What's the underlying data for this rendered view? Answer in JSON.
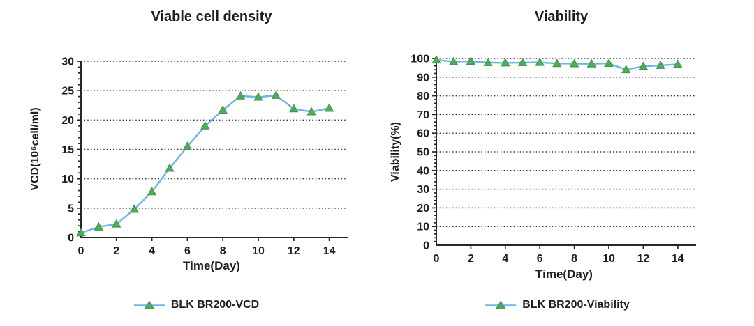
{
  "figure": {
    "background": "#ffffff"
  },
  "colors": {
    "line": "#6CB5E8",
    "marker": "#4FAC57",
    "marker_edge": "#3D9448",
    "axis": "#262626",
    "grid": "#3a3a3a",
    "text": "#1f1f1f"
  },
  "chart_data": [
    {
      "type": "line",
      "title": "Viable cell density",
      "xlabel": "Time(Day)",
      "ylabel": "VCD(10⁶cell/ml)",
      "x": [
        0,
        1,
        2,
        3,
        4,
        5,
        6,
        7,
        8,
        9,
        10,
        11,
        12,
        13,
        14
      ],
      "series": [
        {
          "name": "BLK BR200-VCD",
          "values": [
            0.8,
            1.8,
            2.3,
            4.8,
            7.8,
            11.8,
            15.5,
            19.0,
            21.7,
            24.1,
            23.9,
            24.2,
            21.9,
            21.4,
            22.0
          ],
          "line_color": "#6CB5E8",
          "marker": "triangle-up",
          "marker_color": "#4FAC57"
        }
      ],
      "xlim": [
        0,
        15
      ],
      "ylim": [
        0,
        30
      ],
      "x_ticks": [
        0,
        2,
        4,
        6,
        8,
        10,
        12,
        14
      ],
      "y_ticks": [
        0,
        5,
        10,
        15,
        20,
        25,
        30
      ],
      "y_minor_step": 1,
      "grid": "horizontal-dotted",
      "legend_position": "bottom"
    },
    {
      "type": "line",
      "title": "Viability",
      "xlabel": "Time(Day)",
      "ylabel": "Viability(%)",
      "x": [
        0,
        1,
        2,
        3,
        4,
        5,
        6,
        7,
        8,
        9,
        10,
        11,
        12,
        13,
        14
      ],
      "series": [
        {
          "name": "BLK BR200-Viability",
          "values": [
            99.2,
            98.3,
            98.5,
            97.8,
            97.6,
            97.8,
            97.9,
            97.3,
            97.2,
            97.1,
            97.4,
            94.0,
            95.8,
            96.3,
            96.9
          ],
          "line_color": "#6CB5E8",
          "marker": "triangle-up",
          "marker_color": "#4FAC57"
        }
      ],
      "xlim": [
        0,
        15
      ],
      "ylim": [
        0,
        100
      ],
      "x_ticks": [
        0,
        2,
        4,
        6,
        8,
        10,
        12,
        14
      ],
      "y_ticks": [
        0,
        10,
        20,
        30,
        40,
        50,
        60,
        70,
        80,
        90,
        100
      ],
      "y_minor_step": 2,
      "grid": "horizontal-dotted",
      "legend_position": "bottom"
    }
  ]
}
